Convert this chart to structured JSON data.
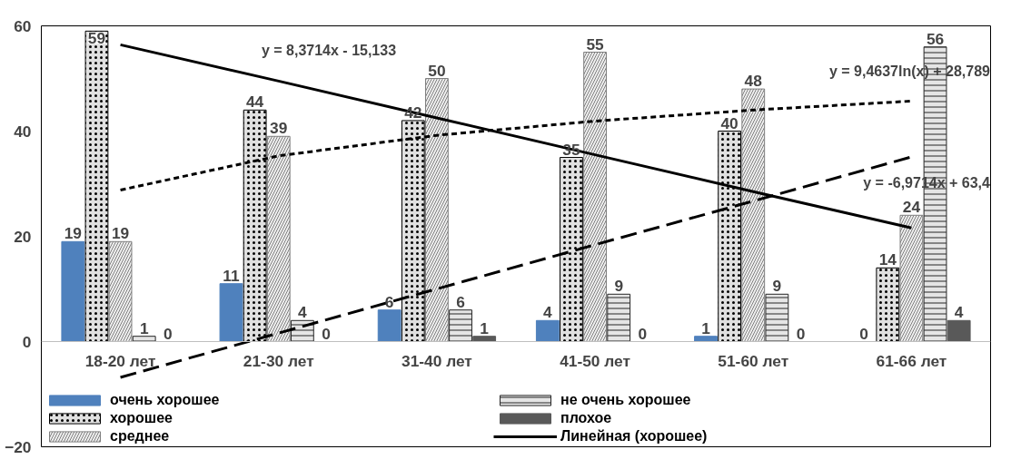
{
  "chart_data": {
    "type": "bar",
    "categories": [
      "18-20 лет",
      "21-30 лет",
      "31-40 лет",
      "41-50 лет",
      "51-60 лет",
      "61-66 лет"
    ],
    "series": [
      {
        "name": "очень хорошее",
        "color": "#4f81bd",
        "values": [
          19,
          11,
          6,
          4,
          1,
          0
        ],
        "value_labels": [
          "19",
          "11",
          "6",
          "4",
          "1",
          "0"
        ]
      },
      {
        "name": "хорошее",
        "color": "#000000",
        "values": [
          59,
          44,
          42,
          35,
          40,
          14
        ],
        "value_labels": [
          "59",
          "44",
          "42",
          "35",
          "40",
          "14"
        ]
      },
      {
        "name": "среднее",
        "color": "#7f7f7f",
        "values": [
          19,
          39,
          50,
          55,
          48,
          24
        ],
        "value_labels": [
          "19",
          "39",
          "50",
          "55",
          "48",
          "24"
        ]
      },
      {
        "name": "не очень хорошее",
        "color": "#262626",
        "values": [
          1,
          4,
          6,
          9,
          9,
          56
        ],
        "value_labels": [
          "1",
          "4",
          "6",
          "9",
          "9",
          "56"
        ]
      },
      {
        "name": "плохое",
        "color": "#595959",
        "values": [
          0,
          0,
          1,
          0,
          0,
          4
        ],
        "value_labels": [
          "0",
          "0",
          "1",
          "0",
          "0",
          "4"
        ]
      },
      {
        "name": "Линейная (хорошее)",
        "type": "line",
        "line_style": "solid",
        "color": "#000000",
        "x": [
          "18-20 лет",
          "21-30 лет",
          "31-40 лет",
          "41-50 лет",
          "51-60 лет",
          "61-66 лет"
        ],
        "values": [
          56.4,
          49.5,
          42.5,
          35.5,
          28.5,
          21.6
        ]
      },
      {
        "type": "line",
        "line_style": "dashed",
        "color": "#000000",
        "x": [
          "18-20 лет",
          "21-30 лет",
          "31-40 лет",
          "41-50 лет",
          "51-60 лет",
          "61-66 лет"
        ],
        "values": [
          -6.8,
          1.6,
          10.0,
          18.4,
          26.7,
          35.1
        ]
      },
      {
        "type": "line",
        "line_style": "dashed",
        "color": "#000000",
        "x": [
          "18-20 лет",
          "21-30 лет",
          "31-40 лет",
          "41-50 лет",
          "51-60 лет",
          "61-66 лет"
        ],
        "values": [
          28.8,
          35.3,
          39.2,
          41.9,
          44.0,
          45.7
        ]
      }
    ],
    "ylim": [
      -20,
      60
    ],
    "yticks": [
      -20,
      0,
      20,
      40,
      60
    ],
    "grid": false,
    "legend": "bottom",
    "annotations": [
      "y = 8,3714x - 15,133",
      "y = 9,4637ln(x) + 28,789",
      "y = -6,9714x + 63,4"
    ]
  }
}
